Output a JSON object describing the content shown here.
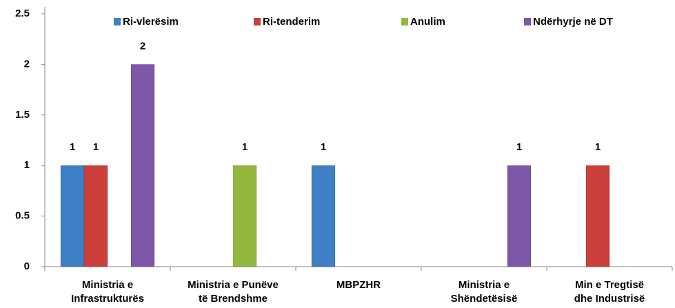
{
  "chart_data": {
    "type": "bar",
    "categories": [
      [
        "Ministria e",
        "Infrastrukturës"
      ],
      [
        "Ministria e Punëve",
        "të Brendshme"
      ],
      [
        "MBPZHR"
      ],
      [
        "Ministria e",
        "Shëndetësisë"
      ],
      [
        "Min e Tregtisë",
        "dhe Industrisë"
      ]
    ],
    "series": [
      {
        "name": "Ri-vlerësim",
        "color": "#3f7fc6",
        "values": [
          1,
          0,
          1,
          0,
          0
        ]
      },
      {
        "name": "Ri-tenderim",
        "color": "#cc3f3a",
        "values": [
          1,
          0,
          0,
          0,
          1
        ]
      },
      {
        "name": "Anulim",
        "color": "#93b73c",
        "values": [
          0,
          1,
          0,
          0,
          0
        ]
      },
      {
        "name": "Ndërhyrje në DT",
        "color": "#7e57a8",
        "values": [
          2,
          0,
          0,
          1,
          0
        ]
      }
    ],
    "ylim": [
      0,
      2.5
    ],
    "yticks": [
      0,
      0.5,
      1,
      1.5,
      2,
      2.5
    ],
    "grid": false,
    "legend": "top"
  }
}
